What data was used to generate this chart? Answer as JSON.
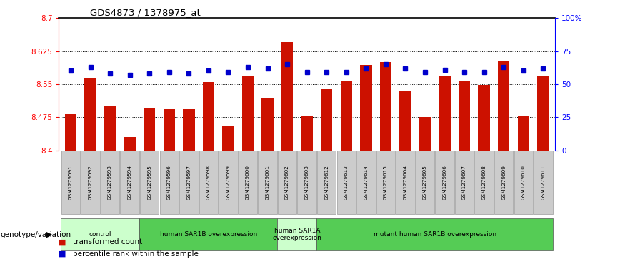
{
  "title": "GDS4873 / 1378975_at",
  "samples": [
    "GSM1279591",
    "GSM1279592",
    "GSM1279593",
    "GSM1279594",
    "GSM1279595",
    "GSM1279596",
    "GSM1279597",
    "GSM1279598",
    "GSM1279599",
    "GSM1279600",
    "GSM1279601",
    "GSM1279602",
    "GSM1279603",
    "GSM1279612",
    "GSM1279613",
    "GSM1279614",
    "GSM1279615",
    "GSM1279604",
    "GSM1279605",
    "GSM1279606",
    "GSM1279607",
    "GSM1279608",
    "GSM1279609",
    "GSM1279610",
    "GSM1279611"
  ],
  "red_values": [
    8.482,
    8.565,
    8.502,
    8.43,
    8.495,
    8.494,
    8.493,
    8.555,
    8.455,
    8.568,
    8.518,
    8.645,
    8.478,
    8.538,
    8.558,
    8.593,
    8.6,
    8.535,
    8.475,
    8.568,
    8.558,
    8.548,
    8.603,
    8.478,
    8.568
  ],
  "blue_values": [
    60,
    63,
    58,
    57,
    58,
    59,
    58,
    60,
    59,
    63,
    62,
    65,
    59,
    59,
    59,
    62,
    65,
    62,
    59,
    61,
    59,
    59,
    63,
    60,
    62
  ],
  "ymin": 8.4,
  "ymax": 8.7,
  "yticks": [
    8.4,
    8.475,
    8.55,
    8.625,
    8.7
  ],
  "ytick_labels": [
    "8.4",
    "8.475",
    "8.55",
    "8.625",
    "8.7"
  ],
  "right_yticks": [
    0,
    25,
    50,
    75,
    100
  ],
  "right_ytick_labels": [
    "0",
    "25",
    "50",
    "75",
    "100%"
  ],
  "groups": [
    {
      "label": "control",
      "start": 0,
      "end": 4,
      "color": "#ccffcc"
    },
    {
      "label": "human SAR1B overexpression",
      "start": 4,
      "end": 11,
      "color": "#55cc55"
    },
    {
      "label": "human SAR1A\noverexpression",
      "start": 11,
      "end": 13,
      "color": "#ccffcc"
    },
    {
      "label": "mutant human SAR1B overexpression",
      "start": 13,
      "end": 25,
      "color": "#55cc55"
    }
  ],
  "bar_color": "#cc1100",
  "dot_color": "#0000cc"
}
